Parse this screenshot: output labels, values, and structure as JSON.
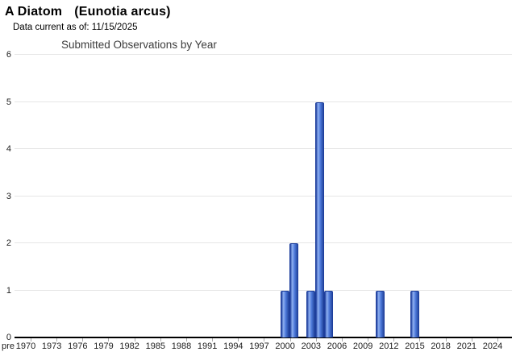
{
  "header": {
    "common_name": "A Diatom",
    "scientific_name": "(Eunotia arcus)",
    "data_current": "Data current as of: 11/15/2025"
  },
  "chart_data": {
    "type": "bar",
    "title": "Submitted Observations by Year",
    "xlabel": "",
    "ylabel": "",
    "ylim": [
      0,
      6
    ],
    "y_ticks": [
      0,
      1,
      2,
      3,
      4,
      5,
      6
    ],
    "grid": true,
    "legend": "none",
    "x_tick_labels": [
      "pre",
      "1970",
      "1973",
      "1976",
      "1979",
      "1982",
      "1985",
      "1988",
      "1991",
      "1994",
      "1997",
      "2000",
      "2003",
      "2006",
      "2009",
      "2012",
      "2015",
      "2018",
      "2021",
      "2024"
    ],
    "series": [
      {
        "name": "Submitted Observations",
        "points": [
          {
            "year": 2000,
            "value": 1
          },
          {
            "year": 2001,
            "value": 2
          },
          {
            "year": 2003,
            "value": 1
          },
          {
            "year": 2004,
            "value": 5
          },
          {
            "year": 2005,
            "value": 1
          },
          {
            "year": 2011,
            "value": 1
          },
          {
            "year": 2015,
            "value": 1
          }
        ]
      }
    ]
  },
  "colors": {
    "bar_edge": "#1d3e9c",
    "bar_light": "#8fb0f2",
    "bar_mid": "#4a76d8",
    "bar_dark": "#27489f",
    "gridline": "#e6e6e6",
    "axis": "#000000",
    "tick_mark": "#aaaaaa",
    "chart_title_text": "#3c3c3c",
    "text": "#000000"
  }
}
